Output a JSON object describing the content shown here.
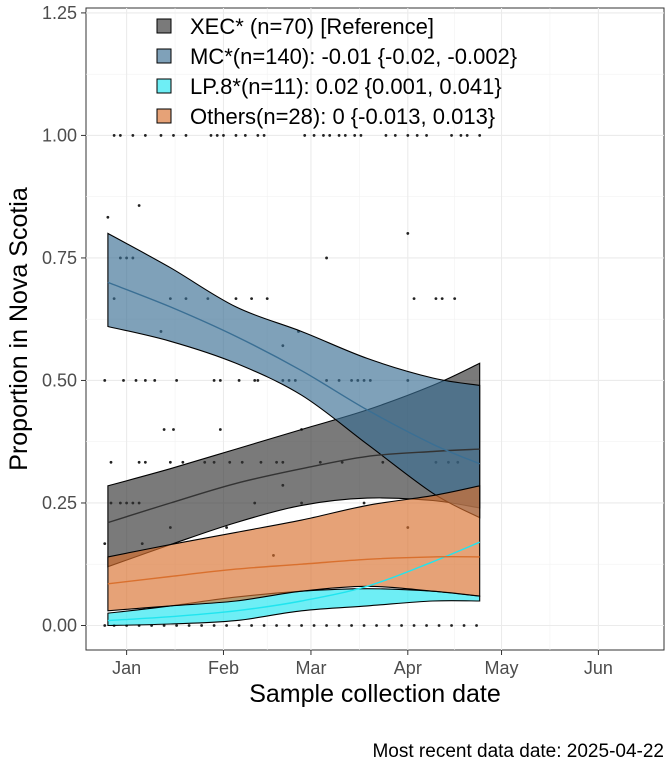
{
  "chart_data": {
    "type": "line",
    "xlabel": "Sample collection date",
    "ylabel": "Proportion in Nova Scotia",
    "caption": "Most recent data date: 2025-04-22",
    "xlim": [
      "2024-12-19",
      "2025-06-22"
    ],
    "ylim": [
      -0.05,
      1.26
    ],
    "x_ticks": [
      {
        "date": "2025-01-01",
        "label": "Jan"
      },
      {
        "date": "2025-02-01",
        "label": "Feb"
      },
      {
        "date": "2025-03-01",
        "label": "Mar"
      },
      {
        "date": "2025-04-01",
        "label": "Apr"
      },
      {
        "date": "2025-05-01",
        "label": "May"
      },
      {
        "date": "2025-06-01",
        "label": "Jun"
      }
    ],
    "y_ticks": [
      {
        "value": 0,
        "label": "0.00"
      },
      {
        "value": 0.25,
        "label": "0.25"
      },
      {
        "value": 0.5,
        "label": "0.50"
      },
      {
        "value": 0.75,
        "label": "0.75"
      },
      {
        "value": 1.0,
        "label": "1.00"
      },
      {
        "value": 1.25,
        "label": "1.25"
      }
    ],
    "grid": true,
    "legend_position": "top-left",
    "fit_dates": [
      "2024-12-26",
      "2025-01-15",
      "2025-02-05",
      "2025-02-26",
      "2025-03-19",
      "2025-04-09",
      "2025-04-24"
    ],
    "series": [
      {
        "name": "XEC* (n=70)  [Reference]",
        "color": "#333333",
        "fit": [
          0.21,
          0.25,
          0.29,
          0.32,
          0.345,
          0.355,
          0.36
        ],
        "lower": [
          0.12,
          0.165,
          0.21,
          0.245,
          0.26,
          0.255,
          0.24
        ],
        "upper": [
          0.285,
          0.32,
          0.36,
          0.4,
          0.44,
          0.49,
          0.535
        ]
      },
      {
        "name": "MC*(n=140): -0.01 {-0.02, -0.002}",
        "color": "#3a6f94",
        "fit": [
          0.7,
          0.65,
          0.59,
          0.52,
          0.44,
          0.37,
          0.33
        ],
        "lower": [
          0.61,
          0.58,
          0.535,
          0.47,
          0.37,
          0.27,
          0.22
        ],
        "upper": [
          0.8,
          0.73,
          0.65,
          0.6,
          0.545,
          0.505,
          0.49
        ]
      },
      {
        "name": "LP.8*(n=11): 0.02 {0.001, 0.041}",
        "color": "#20e5ef",
        "fit": [
          0.01,
          0.018,
          0.03,
          0.05,
          0.08,
          0.13,
          0.17
        ],
        "lower": [
          0.0,
          0.003,
          0.01,
          0.03,
          0.04,
          0.05,
          0.05
        ],
        "upper": [
          0.025,
          0.04,
          0.058,
          0.07,
          0.075,
          0.07,
          0.06
        ]
      },
      {
        "name": "Others(n=28): 0 {-0.013, 0.013}",
        "color": "#d9702e",
        "fit": [
          0.085,
          0.1,
          0.115,
          0.125,
          0.135,
          0.14,
          0.14
        ],
        "lower": [
          0.03,
          0.04,
          0.05,
          0.07,
          0.08,
          0.07,
          0.06
        ],
        "upper": [
          0.14,
          0.165,
          0.19,
          0.215,
          0.245,
          0.265,
          0.285
        ]
      }
    ],
    "observations": [
      {
        "date": "2024-12-28",
        "value": 1.0
      },
      {
        "date": "2024-12-30",
        "value": 1.0
      },
      {
        "date": "2025-01-03",
        "value": 1.0
      },
      {
        "date": "2025-01-07",
        "value": 1.0
      },
      {
        "date": "2025-01-12",
        "value": 1.0
      },
      {
        "date": "2025-01-16",
        "value": 1.0
      },
      {
        "date": "2025-01-20",
        "value": 1.0
      },
      {
        "date": "2025-01-28",
        "value": 1.0
      },
      {
        "date": "2025-01-30",
        "value": 1.0
      },
      {
        "date": "2025-02-01",
        "value": 1.0
      },
      {
        "date": "2025-02-05",
        "value": 1.0
      },
      {
        "date": "2025-02-08",
        "value": 1.0
      },
      {
        "date": "2025-02-12",
        "value": 1.0
      },
      {
        "date": "2025-02-14",
        "value": 1.0
      },
      {
        "date": "2025-02-27",
        "value": 1.0
      },
      {
        "date": "2025-03-02",
        "value": 1.0
      },
      {
        "date": "2025-03-05",
        "value": 1.0
      },
      {
        "date": "2025-03-07",
        "value": 1.0
      },
      {
        "date": "2025-03-10",
        "value": 1.0
      },
      {
        "date": "2025-03-12",
        "value": 1.0
      },
      {
        "date": "2025-03-15",
        "value": 1.0
      },
      {
        "date": "2025-03-17",
        "value": 1.0
      },
      {
        "date": "2025-03-25",
        "value": 1.0
      },
      {
        "date": "2025-03-28",
        "value": 1.0
      },
      {
        "date": "2025-04-01",
        "value": 1.0
      },
      {
        "date": "2025-04-04",
        "value": 1.0
      },
      {
        "date": "2025-04-07",
        "value": 1.0
      },
      {
        "date": "2025-04-15",
        "value": 1.0
      },
      {
        "date": "2025-04-18",
        "value": 1.0
      },
      {
        "date": "2025-04-20",
        "value": 1.0
      },
      {
        "date": "2025-04-24",
        "value": 1.0
      },
      {
        "date": "2024-12-26",
        "value": 0.833
      },
      {
        "date": "2025-01-05",
        "value": 0.857
      },
      {
        "date": "2025-03-06",
        "value": 0.75
      },
      {
        "date": "2025-04-01",
        "value": 0.8
      },
      {
        "date": "2024-12-28",
        "value": 0.667
      },
      {
        "date": "2024-12-30",
        "value": 0.75
      },
      {
        "date": "2025-01-01",
        "value": 0.75
      },
      {
        "date": "2025-01-03",
        "value": 0.75
      },
      {
        "date": "2025-01-15",
        "value": 0.667
      },
      {
        "date": "2025-01-20",
        "value": 0.667
      },
      {
        "date": "2025-01-27",
        "value": 0.667
      },
      {
        "date": "2025-02-05",
        "value": 0.667
      },
      {
        "date": "2025-02-10",
        "value": 0.667
      },
      {
        "date": "2025-02-15",
        "value": 0.667
      },
      {
        "date": "2025-02-25",
        "value": 0.6
      },
      {
        "date": "2025-01-12",
        "value": 0.6
      },
      {
        "date": "2025-02-20",
        "value": 0.571
      },
      {
        "date": "2025-04-03",
        "value": 0.667
      },
      {
        "date": "2025-04-10",
        "value": 0.667
      },
      {
        "date": "2025-04-12",
        "value": 0.667
      },
      {
        "date": "2025-04-16",
        "value": 0.667
      },
      {
        "date": "2024-12-25",
        "value": 0.5
      },
      {
        "date": "2024-12-31",
        "value": 0.5
      },
      {
        "date": "2025-01-04",
        "value": 0.5
      },
      {
        "date": "2025-01-07",
        "value": 0.5
      },
      {
        "date": "2025-01-10",
        "value": 0.5
      },
      {
        "date": "2025-01-17",
        "value": 0.5
      },
      {
        "date": "2025-01-29",
        "value": 0.5
      },
      {
        "date": "2025-01-31",
        "value": 0.5
      },
      {
        "date": "2025-02-06",
        "value": 0.5
      },
      {
        "date": "2025-02-11",
        "value": 0.5
      },
      {
        "date": "2025-02-12",
        "value": 0.5
      },
      {
        "date": "2025-02-20",
        "value": 0.5
      },
      {
        "date": "2025-02-22",
        "value": 0.5
      },
      {
        "date": "2025-02-24",
        "value": 0.5
      },
      {
        "date": "2025-03-06",
        "value": 0.5
      },
      {
        "date": "2025-03-10",
        "value": 0.5
      },
      {
        "date": "2025-03-14",
        "value": 0.5
      },
      {
        "date": "2025-03-16",
        "value": 0.5
      },
      {
        "date": "2025-03-18",
        "value": 0.5
      },
      {
        "date": "2025-03-20",
        "value": 0.5
      },
      {
        "date": "2025-04-01",
        "value": 0.5
      },
      {
        "date": "2025-01-13",
        "value": 0.4
      },
      {
        "date": "2025-01-16",
        "value": 0.4
      },
      {
        "date": "2025-01-31",
        "value": 0.4
      },
      {
        "date": "2025-02-26",
        "value": 0.4
      },
      {
        "date": "2024-12-27",
        "value": 0.333
      },
      {
        "date": "2025-01-05",
        "value": 0.333
      },
      {
        "date": "2025-01-07",
        "value": 0.333
      },
      {
        "date": "2025-01-15",
        "value": 0.333
      },
      {
        "date": "2025-01-19",
        "value": 0.333
      },
      {
        "date": "2025-01-26",
        "value": 0.333
      },
      {
        "date": "2025-01-29",
        "value": 0.333
      },
      {
        "date": "2025-02-03",
        "value": 0.333
      },
      {
        "date": "2025-02-07",
        "value": 0.333
      },
      {
        "date": "2025-02-13",
        "value": 0.333
      },
      {
        "date": "2025-02-18",
        "value": 0.333
      },
      {
        "date": "2025-02-20",
        "value": 0.333
      },
      {
        "date": "2025-03-04",
        "value": 0.333
      },
      {
        "date": "2025-03-11",
        "value": 0.333
      },
      {
        "date": "2025-03-24",
        "value": 0.333
      },
      {
        "date": "2025-04-10",
        "value": 0.333
      },
      {
        "date": "2025-04-14",
        "value": 0.333
      },
      {
        "date": "2025-04-17",
        "value": 0.333
      },
      {
        "date": "2025-02-20",
        "value": 0.286
      },
      {
        "date": "2024-12-27",
        "value": 0.25
      },
      {
        "date": "2024-12-30",
        "value": 0.25
      },
      {
        "date": "2025-01-01",
        "value": 0.25
      },
      {
        "date": "2025-01-03",
        "value": 0.25
      },
      {
        "date": "2025-01-05",
        "value": 0.25
      },
      {
        "date": "2025-02-11",
        "value": 0.25
      },
      {
        "date": "2025-02-26",
        "value": 0.25
      },
      {
        "date": "2025-03-18",
        "value": 0.25
      },
      {
        "date": "2025-01-15",
        "value": 0.2
      },
      {
        "date": "2025-02-02",
        "value": 0.2
      },
      {
        "date": "2025-04-01",
        "value": 0.2
      },
      {
        "date": "2024-12-25",
        "value": 0.167
      },
      {
        "date": "2025-01-06",
        "value": 0.167
      },
      {
        "date": "2025-02-17",
        "value": 0.143
      },
      {
        "date": "2024-12-25",
        "value": 0.0
      },
      {
        "date": "2024-12-28",
        "value": 0.0
      },
      {
        "date": "2025-01-01",
        "value": 0.0
      },
      {
        "date": "2025-01-05",
        "value": 0.0
      },
      {
        "date": "2025-01-09",
        "value": 0.0
      },
      {
        "date": "2025-01-13",
        "value": 0.0
      },
      {
        "date": "2025-01-17",
        "value": 0.0
      },
      {
        "date": "2025-01-21",
        "value": 0.0
      },
      {
        "date": "2025-01-25",
        "value": 0.0
      },
      {
        "date": "2025-01-29",
        "value": 0.0
      },
      {
        "date": "2025-02-02",
        "value": 0.0
      },
      {
        "date": "2025-02-06",
        "value": 0.0
      },
      {
        "date": "2025-02-10",
        "value": 0.0
      },
      {
        "date": "2025-02-14",
        "value": 0.0
      },
      {
        "date": "2025-02-18",
        "value": 0.0
      },
      {
        "date": "2025-02-22",
        "value": 0.0
      },
      {
        "date": "2025-02-26",
        "value": 0.0
      },
      {
        "date": "2025-03-02",
        "value": 0.0
      },
      {
        "date": "2025-03-06",
        "value": 0.0
      },
      {
        "date": "2025-03-10",
        "value": 0.0
      },
      {
        "date": "2025-03-14",
        "value": 0.0
      },
      {
        "date": "2025-03-18",
        "value": 0.0
      },
      {
        "date": "2025-03-22",
        "value": 0.0
      },
      {
        "date": "2025-03-26",
        "value": 0.0
      },
      {
        "date": "2025-03-30",
        "value": 0.0
      },
      {
        "date": "2025-04-03",
        "value": 0.0
      },
      {
        "date": "2025-04-07",
        "value": 0.0
      },
      {
        "date": "2025-04-11",
        "value": 0.0
      },
      {
        "date": "2025-04-15",
        "value": 0.0
      },
      {
        "date": "2025-04-19",
        "value": 0.0
      },
      {
        "date": "2025-04-23",
        "value": 0.0
      }
    ]
  }
}
